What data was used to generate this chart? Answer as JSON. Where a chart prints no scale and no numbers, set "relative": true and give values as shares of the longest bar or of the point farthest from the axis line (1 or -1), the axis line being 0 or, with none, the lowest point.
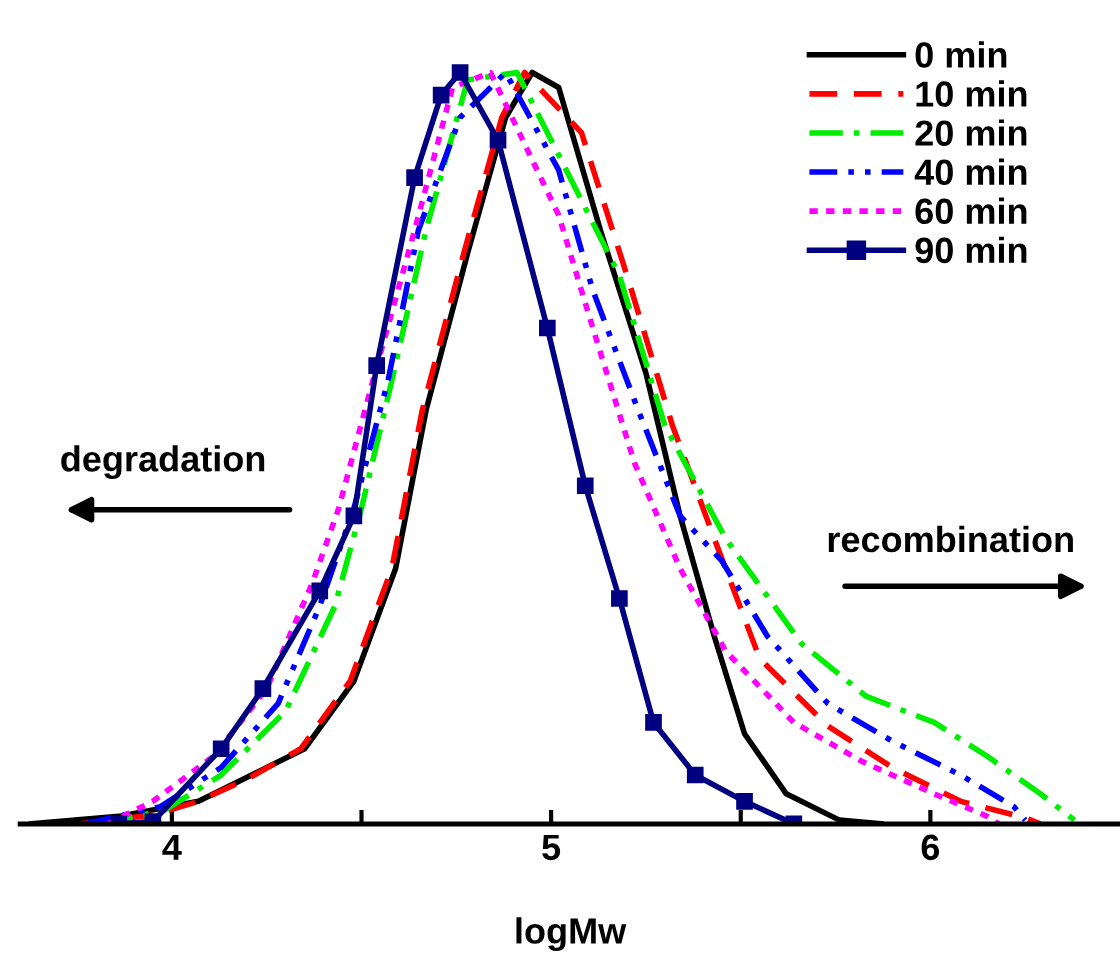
{
  "chart_data": {
    "type": "line",
    "relative": true,
    "xlabel": "logMw",
    "xlim": [
      3.6,
      6.5
    ],
    "xticks": [
      4,
      {
        "value": 4.5,
        "label": null
      },
      5,
      {
        "value": 5.5,
        "label": null
      },
      6
    ],
    "grid": false,
    "legend": "top right",
    "tick_labels": "x",
    "annotations": [
      "degradation",
      "recombination"
    ],
    "series": [
      {
        "name": "0 min",
        "color": "#000000",
        "line_style": "solid",
        "marker": "none",
        "x": [
          3.63,
          3.86,
          4.07,
          4.35,
          4.48,
          4.59,
          4.67,
          4.78,
          4.88,
          4.95,
          5.02,
          5.13,
          5.25,
          5.34,
          5.43,
          5.51,
          5.62,
          5.76,
          5.87
        ],
        "values": [
          0,
          0.01,
          0.03,
          0.1,
          0.19,
          0.34,
          0.55,
          0.76,
          0.94,
          1.0,
          0.98,
          0.79,
          0.6,
          0.41,
          0.25,
          0.12,
          0.04,
          0.005,
          0
        ]
      },
      {
        "name": "10 min",
        "color": "#ff0000",
        "line_style": "dashed",
        "marker": "none",
        "x": [
          3.76,
          3.95,
          4.07,
          4.2,
          4.34,
          4.47,
          4.58,
          4.66,
          4.77,
          4.87,
          4.93,
          5.08,
          5.2,
          5.32,
          5.43,
          5.55,
          5.73,
          5.9,
          6.08,
          6.25,
          6.29
        ],
        "values": [
          0,
          0.012,
          0.03,
          0.06,
          0.1,
          0.19,
          0.34,
          0.55,
          0.76,
          0.94,
          1.0,
          0.92,
          0.73,
          0.53,
          0.38,
          0.22,
          0.13,
          0.075,
          0.03,
          0.008,
          0
        ]
      },
      {
        "name": "20 min",
        "color": "#00ee00",
        "line_style": "dashdot",
        "marker": "none",
        "x": [
          3.81,
          3.98,
          4.13,
          4.3,
          4.43,
          4.5,
          4.58,
          4.67,
          4.78,
          4.91,
          5.18,
          5.3,
          5.46,
          5.66,
          5.83,
          6.01,
          6.15,
          6.29,
          6.38
        ],
        "values": [
          0,
          0.018,
          0.065,
          0.15,
          0.29,
          0.42,
          0.59,
          0.79,
          0.99,
          1.0,
          0.73,
          0.53,
          0.38,
          0.24,
          0.17,
          0.135,
          0.09,
          0.04,
          0.005
        ]
      },
      {
        "name": "40 min",
        "color": "#0000ff",
        "line_style": "dashdotdot",
        "marker": "none",
        "x": [
          3.77,
          3.97,
          4.13,
          4.28,
          4.39,
          4.48,
          4.57,
          4.65,
          4.76,
          4.88,
          5.02,
          5.11,
          5.23,
          5.34,
          5.45,
          5.57,
          5.73,
          5.9,
          6.08,
          6.22,
          6.25
        ],
        "values": [
          0,
          0.023,
          0.075,
          0.16,
          0.29,
          0.42,
          0.59,
          0.79,
          0.94,
          1.0,
          0.87,
          0.71,
          0.55,
          0.41,
          0.35,
          0.25,
          0.16,
          0.11,
          0.065,
          0.023,
          0.005
        ]
      },
      {
        "name": "60 min",
        "color": "#ff00ff",
        "line_style": "dotted",
        "marker": "none",
        "x": [
          3.83,
          3.95,
          4.11,
          4.25,
          4.37,
          4.44,
          4.53,
          4.64,
          4.74,
          4.84,
          5.02,
          5.11,
          5.22,
          5.34,
          5.46,
          5.64,
          5.82,
          6.01,
          6.15,
          6.18
        ],
        "values": [
          0,
          0.03,
          0.09,
          0.18,
          0.32,
          0.42,
          0.59,
          0.79,
          0.98,
          1.0,
          0.81,
          0.66,
          0.48,
          0.34,
          0.23,
          0.135,
          0.083,
          0.04,
          0.01,
          0
        ]
      },
      {
        "name": "90 min",
        "color": "#000080",
        "line_style": "solid",
        "marker": "square",
        "x": [
          3.86,
          3.95,
          4.13,
          4.24,
          4.39,
          4.48,
          4.54,
          4.64,
          4.71,
          4.76,
          4.86,
          4.99,
          5.09,
          5.18,
          5.27,
          5.38,
          5.51,
          5.64
        ],
        "values": [
          0,
          0.003,
          0.1,
          0.18,
          0.31,
          0.41,
          0.61,
          0.86,
          0.97,
          1.0,
          0.91,
          0.66,
          0.45,
          0.3,
          0.135,
          0.065,
          0.03,
          0
        ]
      }
    ]
  }
}
